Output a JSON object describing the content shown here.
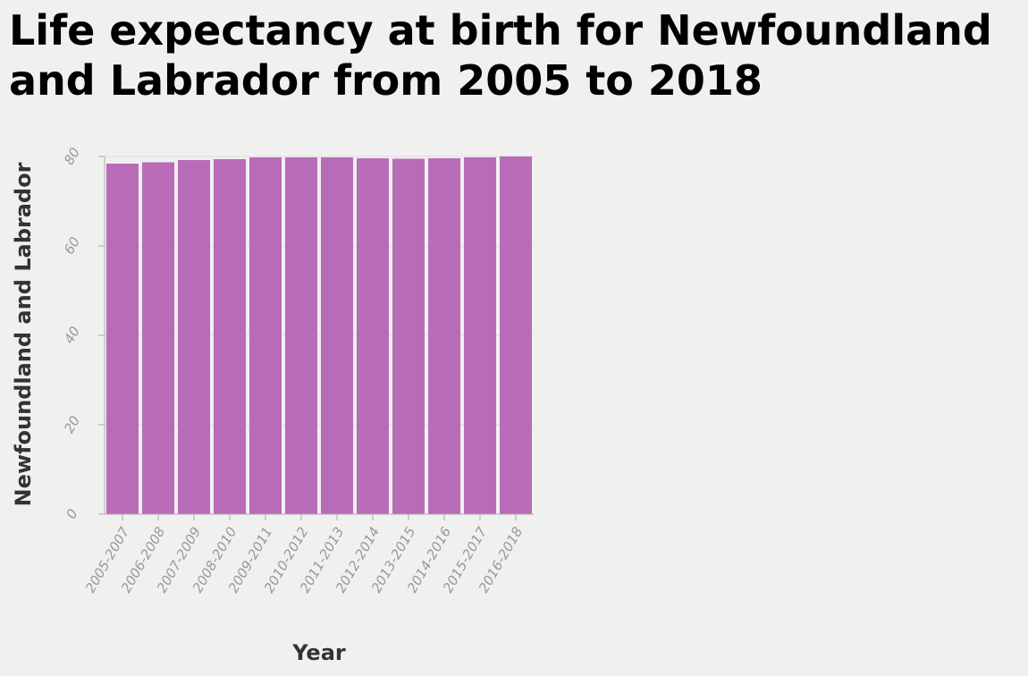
{
  "chart_data": {
    "type": "bar",
    "title": "Life expectancy at birth for Newfoundland and Labrador from 2005 to 2018",
    "xlabel": "Year",
    "ylabel": "Newfoundland and Labrador",
    "categories": [
      "2005-2007",
      "2006-2008",
      "2007-2009",
      "2008-2010",
      "2009-2011",
      "2010-2012",
      "2011-2013",
      "2012-2014",
      "2013-2015",
      "2014-2016",
      "2015-2017",
      "2016-2018"
    ],
    "values": [
      78.4,
      78.7,
      79.2,
      79.4,
      79.8,
      79.8,
      79.8,
      79.6,
      79.5,
      79.6,
      79.8,
      80.0
    ],
    "ylim": [
      0,
      80
    ],
    "yticks": [
      0,
      20,
      40,
      60,
      80
    ],
    "bar_color": "#b86cb8",
    "grid": true
  }
}
